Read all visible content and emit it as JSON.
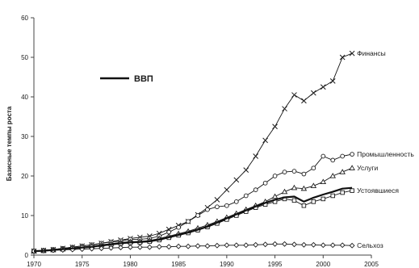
{
  "chart_data": {
    "type": "line",
    "title": "",
    "xlabel": "",
    "ylabel": "Базисные темпы роста",
    "xlim": [
      1970,
      2005
    ],
    "ylim": [
      0,
      60
    ],
    "xticks": [
      1970,
      1975,
      1980,
      1985,
      1990,
      1995,
      2000,
      2005
    ],
    "yticks": [
      0,
      10,
      20,
      30,
      40,
      50,
      60
    ],
    "grid": false,
    "legend": {
      "label": "ВВП",
      "position": "upper-left"
    },
    "x": [
      1970,
      1971,
      1972,
      1973,
      1974,
      1975,
      1976,
      1977,
      1978,
      1979,
      1980,
      1981,
      1982,
      1983,
      1984,
      1985,
      1986,
      1987,
      1988,
      1989,
      1990,
      1991,
      1992,
      1993,
      1994,
      1995,
      1996,
      1997,
      1998,
      1999,
      2000,
      2001,
      2002,
      2003
    ],
    "series": [
      {
        "name": "Финансы",
        "marker": "x",
        "values": [
          1,
          1.2,
          1.4,
          1.7,
          2,
          2.3,
          2.6,
          3,
          3.4,
          3.8,
          4.2,
          4.5,
          4.8,
          5.5,
          6.5,
          7.5,
          8.5,
          10.2,
          12,
          14,
          16.5,
          19,
          21.5,
          25,
          29,
          32.5,
          37,
          40.5,
          39,
          41,
          42.5,
          44,
          50,
          51
        ]
      },
      {
        "name": "Промышленность",
        "marker": "circle",
        "values": [
          1,
          1.2,
          1.4,
          1.7,
          2,
          2.3,
          2.6,
          3,
          3.3,
          3.6,
          4,
          4,
          4.2,
          4.8,
          5.8,
          7,
          8.5,
          10,
          11.5,
          12.2,
          12.5,
          13.5,
          15,
          16.5,
          18.2,
          20,
          21,
          21.2,
          20.5,
          22,
          25,
          24,
          25,
          25.5
        ]
      },
      {
        "name": "Услуги",
        "marker": "triangle",
        "values": [
          1,
          1.1,
          1.3,
          1.5,
          1.8,
          2,
          2.3,
          2.6,
          2.9,
          3.2,
          3.4,
          3.5,
          3.7,
          4.2,
          4.8,
          5.4,
          6,
          6.8,
          7.6,
          8.5,
          9.5,
          10.5,
          11.5,
          12.5,
          13.5,
          14.8,
          16,
          17,
          16.8,
          17.5,
          18.5,
          20,
          21,
          22
        ]
      },
      {
        "name": "Устоявшиеся",
        "marker": "square",
        "values": [
          1,
          1.1,
          1.3,
          1.5,
          1.7,
          1.9,
          2.1,
          2.3,
          2.6,
          2.9,
          3.1,
          3.2,
          3.4,
          3.8,
          4.4,
          5,
          5.6,
          6.3,
          7.1,
          8,
          9,
          10,
          11,
          12,
          12.8,
          13.5,
          14.2,
          13.8,
          12.5,
          13.5,
          14.2,
          15,
          15.8,
          16.3
        ]
      },
      {
        "name": "Сельхоз",
        "marker": "diamond",
        "values": [
          1,
          1.1,
          1.2,
          1.3,
          1.4,
          1.5,
          1.6,
          1.7,
          1.8,
          1.9,
          2,
          2,
          2,
          2.1,
          2.1,
          2.2,
          2.2,
          2.3,
          2.3,
          2.4,
          2.5,
          2.5,
          2.5,
          2.6,
          2.7,
          2.8,
          2.8,
          2.7,
          2.6,
          2.6,
          2.5,
          2.5,
          2.5,
          2.4
        ]
      },
      {
        "name": "ВВП",
        "marker": "none",
        "values": [
          1,
          1.1,
          1.3,
          1.5,
          1.7,
          1.9,
          2.1,
          2.4,
          2.7,
          3,
          3.2,
          3.3,
          3.5,
          3.9,
          4.5,
          5.1,
          5.7,
          6.4,
          7.2,
          8.2,
          9.3,
          10.3,
          11.3,
          12.3,
          13.2,
          14,
          14.6,
          14.8,
          13.5,
          14.5,
          15.3,
          16,
          16.8,
          17
        ]
      }
    ]
  }
}
